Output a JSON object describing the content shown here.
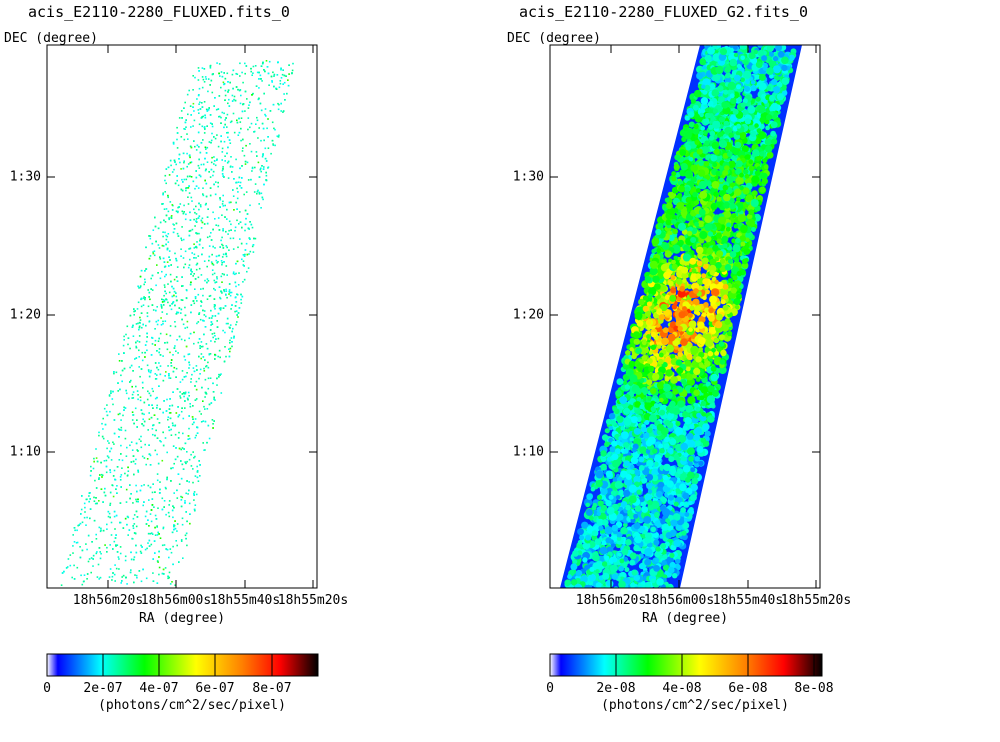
{
  "chart_data": [
    {
      "type": "heatmap",
      "title": "acis_E2110-2280_FLUXED.fits_0",
      "ylabel": "DEC (degree)",
      "xlabel": "RA (degree)",
      "y_ticks": [
        "1:30",
        "1:20",
        "1:10"
      ],
      "x_ticks": [
        "18h56m20s",
        "18h56m00s",
        "18h55m40s",
        "18h55m20s"
      ],
      "colorbar": {
        "ticks": [
          "0",
          "2e-07",
          "4e-07",
          "6e-07",
          "8e-07"
        ],
        "range": [
          0,
          9.6e-07
        ],
        "label": "(photons/cm^2/sec/pixel)"
      },
      "style": "sparse-points"
    },
    {
      "type": "heatmap",
      "title": "acis_E2110-2280_FLUXED_G2.fits_0",
      "ylabel": "DEC (degree)",
      "xlabel": "RA (degree)",
      "y_ticks": [
        "1:30",
        "1:20",
        "1:10"
      ],
      "x_ticks": [
        "18h56m20s",
        "18h56m00s",
        "18h55m40s",
        "18h55m20s"
      ],
      "colorbar": {
        "ticks": [
          "0",
          "2e-08",
          "4e-08",
          "6e-08",
          "8e-08"
        ],
        "range": [
          0,
          8.1e-08
        ],
        "label": "(photons/cm^2/sec/pixel)"
      },
      "style": "smoothed"
    }
  ],
  "colormap": [
    "#ffffff",
    "#0000ff",
    "#00ffff",
    "#00ff00",
    "#ffff00",
    "#ff8000",
    "#ff0000",
    "#000000"
  ]
}
